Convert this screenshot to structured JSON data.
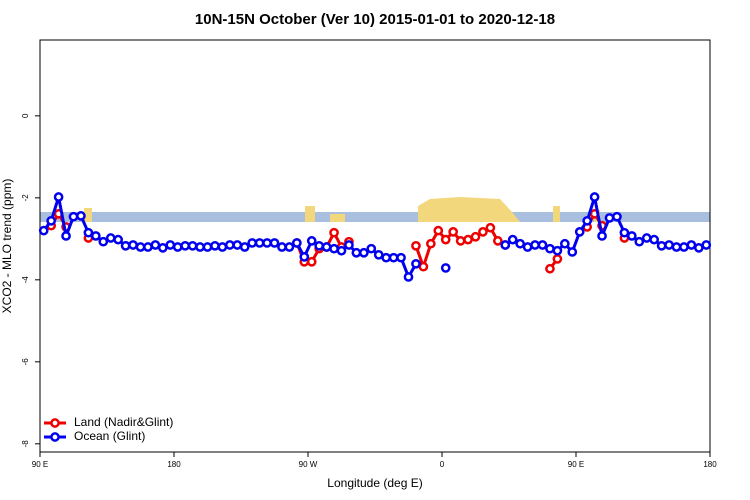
{
  "chart_data": {
    "type": "line",
    "title": "10N-15N October (Ver 10)   2015-01-01 to 2020-12-18",
    "x_label": "Longitude (deg E)",
    "y_label": "XCO2 - MLO trend (ppm)",
    "xlim": [
      90,
      540
    ],
    "ylim": [
      -8.2,
      1.85
    ],
    "xticks": [
      {
        "value": 90,
        "label": "90 E"
      },
      180,
      {
        "value": 270,
        "label": "90 W"
      },
      {
        "value": 360,
        "label": "0"
      },
      {
        "value": 450,
        "label": "90 E"
      },
      {
        "value": 540,
        "label": "180"
      }
    ],
    "yticks": [
      0,
      -2,
      -4,
      -6,
      -8
    ],
    "legend": "bottom-left",
    "x": [
      92.5,
      97.5,
      102.5,
      107.5,
      112.5,
      117.5,
      122.5,
      127.5,
      132.5,
      137.5,
      142.5,
      147.5,
      152.5,
      157.5,
      162.5,
      167.5,
      172.5,
      177.5,
      182.5,
      187.5,
      192.5,
      197.5,
      202.5,
      207.5,
      212.5,
      217.5,
      222.5,
      227.5,
      232.5,
      237.5,
      242.5,
      247.5,
      252.5,
      257.5,
      262.5,
      267.5,
      272.5,
      277.5,
      282.5,
      287.5,
      292.5,
      297.5,
      302.5,
      307.5,
      312.5,
      317.5,
      322.5,
      327.5,
      332.5,
      337.5,
      342.5,
      347.5,
      352.5,
      357.5,
      362.5,
      367.5,
      372.5,
      377.5,
      382.5,
      387.5,
      392.5,
      397.5,
      402.5,
      407.5,
      412.5,
      417.5,
      422.5,
      427.5,
      432.5,
      437.5,
      442.5,
      447.5,
      452.5,
      457.5,
      462.5,
      467.5,
      472.5,
      477.5,
      482.5,
      487.5,
      492.5,
      497.5,
      502.5,
      507.5,
      512.5,
      517.5,
      522.5,
      527.5,
      532.5,
      537.5
    ],
    "series": [
      {
        "name": "Land (Nadir&Glint)",
        "color": "#ee0000",
        "values": [
          null,
          -2.68,
          -2.39,
          -2.71,
          null,
          null,
          -2.98,
          null,
          null,
          null,
          null,
          null,
          null,
          null,
          null,
          null,
          null,
          null,
          null,
          null,
          null,
          null,
          null,
          null,
          null,
          null,
          null,
          null,
          null,
          null,
          null,
          null,
          null,
          null,
          -3.1,
          -3.56,
          -3.56,
          -3.24,
          -3.2,
          -2.85,
          -3.2,
          -3.07,
          null,
          null,
          null,
          null,
          null,
          null,
          null,
          null,
          -3.17,
          -3.68,
          -3.12,
          -2.8,
          -3.02,
          -2.83,
          -3.05,
          -3.02,
          -2.95,
          -2.83,
          -2.73,
          -3.05,
          -3.15,
          null,
          null,
          null,
          null,
          null,
          -3.73,
          -3.49,
          null,
          null,
          null,
          -2.71,
          -2.39,
          -2.68,
          null,
          null,
          -2.98,
          null,
          null,
          null,
          null,
          null,
          null,
          null,
          null,
          null,
          null,
          null
        ]
      },
      {
        "name": "Ocean (Glint)",
        "color": "#0000ee",
        "values": [
          -2.8,
          -2.56,
          -1.98,
          -2.93,
          -2.46,
          -2.44,
          -2.85,
          -2.93,
          -3.07,
          -2.98,
          -3.02,
          -3.17,
          -3.15,
          -3.2,
          -3.2,
          -3.15,
          -3.22,
          -3.15,
          -3.2,
          -3.17,
          -3.17,
          -3.2,
          -3.2,
          -3.17,
          -3.2,
          -3.15,
          -3.15,
          -3.2,
          -3.1,
          -3.1,
          -3.1,
          -3.1,
          -3.2,
          -3.2,
          -3.1,
          -3.44,
          -3.05,
          -3.17,
          -3.2,
          -3.24,
          -3.29,
          -3.15,
          -3.34,
          -3.34,
          -3.24,
          -3.39,
          -3.46,
          -3.46,
          -3.46,
          -3.93,
          -3.61,
          null,
          null,
          null,
          -3.71,
          null,
          null,
          null,
          null,
          null,
          null,
          null,
          -3.15,
          -3.02,
          -3.12,
          -3.2,
          -3.15,
          -3.15,
          -3.24,
          -3.29,
          -3.12,
          -3.32,
          -2.83,
          -2.56,
          -1.98,
          -2.93,
          -2.49,
          -2.46,
          -2.85,
          -2.93,
          -3.07,
          -2.98,
          -3.02,
          -3.17,
          -3.15,
          -3.2,
          -3.2,
          -3.15,
          -3.22,
          -3.15
        ]
      }
    ]
  }
}
